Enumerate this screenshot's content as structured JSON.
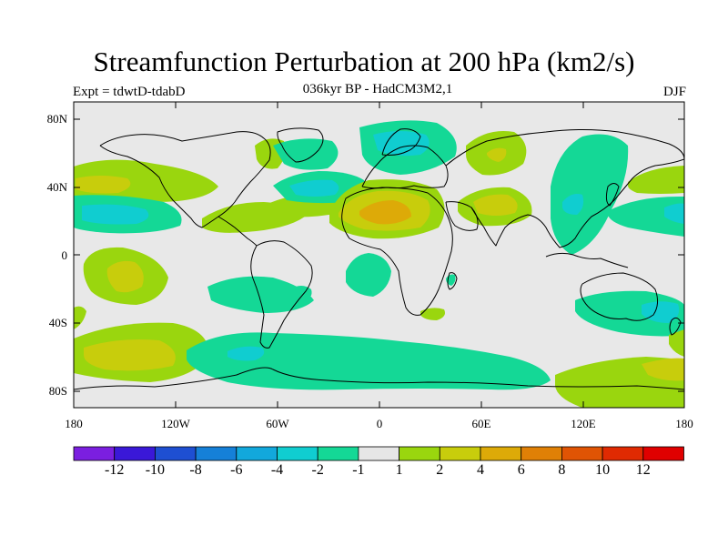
{
  "title": "Streamfunction Perturbation at 200 hPa (km2/s)",
  "experiment": "Expt = tdwtD-tdabD",
  "period": "036kyr BP - HadCM3M2,1",
  "season": "DJF",
  "map": {
    "projection": "equirectangular",
    "lon_range": [
      -180,
      180
    ],
    "lat_range": [
      -90,
      90
    ],
    "background_color": "#e8e8e8",
    "lat_tick_labels": [
      "80N",
      "40N",
      "0",
      "40S",
      "80S"
    ],
    "lon_tick_labels": [
      "180",
      "120W",
      "60W",
      "0",
      "60E",
      "120E",
      "180"
    ]
  },
  "colorbar": {
    "labels": [
      "-12",
      "-10",
      "-8",
      "-6",
      "-4",
      "-2",
      "-1",
      "1",
      "2",
      "4",
      "6",
      "8",
      "10",
      "12"
    ],
    "colors": [
      "#7b1fe0",
      "#3a18d8",
      "#1e4fd2",
      "#1580d8",
      "#12a8dc",
      "#10cdd0",
      "#14d896",
      "#e6e6e6",
      "#9ad60e",
      "#c8cd0c",
      "#ddaa08",
      "#e08006",
      "#e05404",
      "#e02a02",
      "#e00000"
    ]
  },
  "contour_regions": [
    {
      "lon": -160,
      "lat": 38,
      "level": "2"
    },
    {
      "lon": -150,
      "lat": 24,
      "level": "-2"
    },
    {
      "lon": -150,
      "lat": -15,
      "level": "2"
    },
    {
      "lon": -140,
      "lat": -60,
      "level": "2"
    },
    {
      "lon": -30,
      "lat": 40,
      "level": "-2"
    },
    {
      "lon": 10,
      "lat": 65,
      "level": "-2"
    },
    {
      "lon": 5,
      "lat": 30,
      "level": "4"
    },
    {
      "lon": -5,
      "lat": -10,
      "level": "-2"
    },
    {
      "lon": 70,
      "lat": 55,
      "level": "2"
    },
    {
      "lon": 60,
      "lat": 30,
      "level": "2"
    },
    {
      "lon": 125,
      "lat": 40,
      "level": "-2"
    },
    {
      "lon": 145,
      "lat": -30,
      "level": "-2"
    },
    {
      "lon": 145,
      "lat": -70,
      "level": "2"
    },
    {
      "lon": -10,
      "lat": -70,
      "level": "-2"
    }
  ]
}
